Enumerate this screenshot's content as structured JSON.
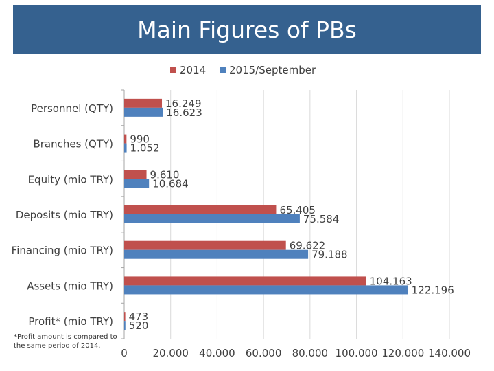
{
  "title": "Main Figures of PBs",
  "footnote": "*Profit  amount is compared to the same period of  2014.",
  "colors": {
    "series_2014": "#c0504d",
    "series_2015": "#4f81bd",
    "title_bar": "#35618f"
  },
  "chart_data": {
    "type": "bar",
    "orientation": "horizontal",
    "categories": [
      "Personnel (QTY)",
      "Branches (QTY)",
      "Equity (mio TRY)",
      "Deposits (mio TRY)",
      "Financing (mio TRY)",
      "Assets (mio TRY)",
      "Profit* (mio TRY)"
    ],
    "series": [
      {
        "name": "2014",
        "values": [
          16249,
          990,
          9610,
          65405,
          69622,
          104163,
          473
        ],
        "labels": [
          "16.249",
          "990",
          "9.610",
          "65.405",
          "69.622",
          "104.163",
          "473"
        ]
      },
      {
        "name": "2015/September",
        "values": [
          16623,
          1052,
          10684,
          75584,
          79188,
          122196,
          520
        ],
        "labels": [
          "16.623",
          "1.052",
          "10.684",
          "75.584",
          "79.188",
          "122.196",
          "520"
        ]
      }
    ],
    "xlim": [
      0,
      140000
    ],
    "xticks": [
      0,
      20000,
      40000,
      60000,
      80000,
      100000,
      120000,
      140000
    ],
    "xtick_labels": [
      "0",
      "20.000",
      "40.000",
      "60.000",
      "80.000",
      "100.000",
      "120.000",
      "140.000"
    ],
    "grid": true,
    "legend": "top-center"
  }
}
